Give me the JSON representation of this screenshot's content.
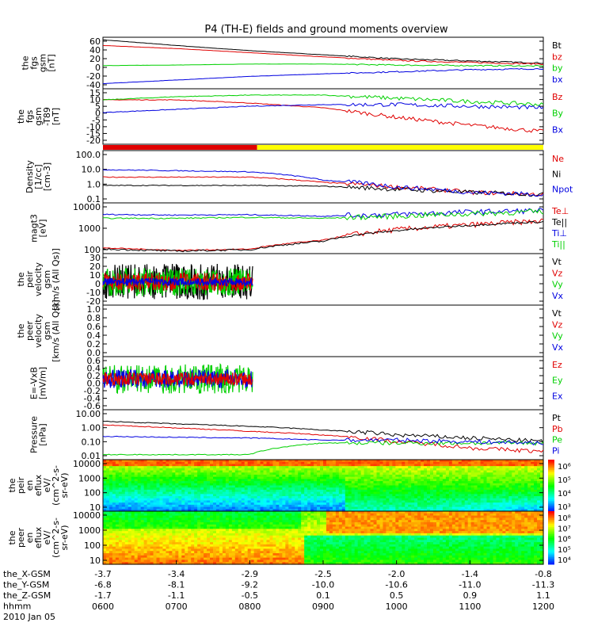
{
  "title": "P4 (TH-E) fields and ground moments overview",
  "x_ticks": [
    "0600",
    "0700",
    "0800",
    "0900",
    "1000",
    "1100",
    "1200"
  ],
  "x_ephem": {
    "labels": [
      "the_X-GSM",
      "the_Y-GSM",
      "the_Z-GSM",
      "hhmm",
      "2010 Jan 05"
    ],
    "X": [
      "-3.7",
      "-3.4",
      "-2.9",
      "-2.5",
      "-2.0",
      "-1.4",
      "-0.8"
    ],
    "Y": [
      "-6.8",
      "-8.1",
      "-9.2",
      "-10.0",
      "-10.6",
      "-11.0",
      "-11.3"
    ],
    "Z": [
      "-1.7",
      "-1.1",
      "-0.5",
      "0.1",
      "0.5",
      "0.9",
      "1.1"
    ]
  },
  "colors": {
    "black": "#000000",
    "red": "#e00000",
    "green": "#00d000",
    "blue": "#0000e0",
    "yellow": "#ffff00"
  },
  "panels": [
    {
      "id": "fgs_gsm",
      "ylabel": [
        "the",
        "fgs",
        "gsm",
        "[nT]"
      ],
      "ticks": [
        "60",
        "40",
        "20",
        "0",
        "-20",
        "-40"
      ],
      "legend": [
        [
          "Bt",
          "black"
        ],
        [
          "bz",
          "red"
        ],
        [
          "by",
          "green"
        ],
        [
          "bx",
          "blue"
        ]
      ]
    },
    {
      "id": "fgs_ssd",
      "ylabel": [
        "the",
        "fgs",
        "gsm",
        "-T89",
        "[nT]"
      ],
      "ticks": [
        "15",
        "10",
        "5",
        "0",
        "-5",
        "-10",
        "-15",
        "-20"
      ],
      "legend": [
        [
          "Bz",
          "red"
        ],
        [
          "By",
          "green"
        ],
        [
          "Bx",
          "blue"
        ]
      ]
    },
    {
      "id": "bar",
      "ylabel": [],
      "ticks": [],
      "legend": []
    },
    {
      "id": "density",
      "ylabel": [
        "Density",
        "[1/cc]",
        "[cm-3]"
      ],
      "ticks": [
        "100.0",
        "10.0",
        "1.0",
        "0.1"
      ],
      "legend": [
        [
          "Ne",
          "red"
        ],
        [
          "Ni",
          "black"
        ],
        [
          "Npot",
          "blue"
        ]
      ]
    },
    {
      "id": "temp",
      "ylabel": [
        "magt3",
        "[eV]"
      ],
      "ticks": [
        "10000",
        "1000",
        "100"
      ],
      "legend": [
        [
          "Te⊥",
          "red"
        ],
        [
          "Te||",
          "black"
        ],
        [
          "Ti⊥",
          "blue"
        ],
        [
          "Ti||",
          "green"
        ]
      ]
    },
    {
      "id": "peir",
      "ylabel": [
        "the",
        "peir",
        "velocity",
        "gsm",
        "[km/s (All Qs)]"
      ],
      "ticks": [
        "30",
        "20",
        "10",
        "0",
        "-10",
        "-20"
      ],
      "legend": [
        [
          "Vt",
          "black"
        ],
        [
          "Vz",
          "red"
        ],
        [
          "Vy",
          "green"
        ],
        [
          "Vx",
          "blue"
        ]
      ]
    },
    {
      "id": "peer",
      "ylabel": [
        "the",
        "peer",
        "velocity",
        "gsm",
        "[km/s (All Qs)]"
      ],
      "ticks": [
        "1.0",
        "0.8",
        "0.6",
        "0.4",
        "0.2",
        "0.0"
      ],
      "legend": [
        [
          "Vt",
          "black"
        ],
        [
          "Vz",
          "red"
        ],
        [
          "Vy",
          "green"
        ],
        [
          "Vx",
          "blue"
        ]
      ]
    },
    {
      "id": "efield",
      "ylabel": [
        "E=-VxB",
        "[mV/m]"
      ],
      "ticks": [
        "0.6",
        "0.4",
        "0.2",
        "0.0",
        "-0.2",
        "-0.4",
        "-0.6"
      ],
      "legend": [
        [
          "Ez",
          "red"
        ],
        [
          "Ey",
          "green"
        ],
        [
          "Ex",
          "blue"
        ]
      ]
    },
    {
      "id": "pressure",
      "ylabel": [
        "Pressure",
        "[nPa]"
      ],
      "ticks": [
        "10.00",
        "1.00",
        "0.10",
        "0.01"
      ],
      "legend": [
        [
          "Pt",
          "black"
        ],
        [
          "Pb",
          "red"
        ],
        [
          "Pe",
          "green"
        ],
        [
          "Pi",
          "blue"
        ]
      ]
    },
    {
      "id": "peir_spec",
      "ylabel": [
        "the",
        "peir",
        "en",
        "eflux",
        "eV/",
        "(cm^2-s-",
        "sr-eV)"
      ],
      "ticks": [
        "10000",
        "1000",
        "100",
        "10"
      ],
      "cbar": [
        "10⁶",
        "10⁵",
        "10⁴",
        "10³"
      ]
    },
    {
      "id": "peer_spec",
      "ylabel": [
        "the",
        "peer",
        "en",
        "eflux",
        "eV/",
        "(cm^2-s-",
        "sr-eV)"
      ],
      "ticks": [
        "10000",
        "1000",
        "100",
        "10"
      ],
      "cbar": [
        "10⁸",
        "10⁷",
        "10⁶",
        "10⁵",
        "10⁴"
      ]
    }
  ],
  "chart_data": {
    "type": "line",
    "title": "P4 (TH-E) fields and ground moments overview",
    "xlabel": "hhmm",
    "x_time": [
      "0600",
      "0700",
      "0800",
      "0900",
      "1000",
      "1100",
      "1200"
    ],
    "date": "2010 Jan 05",
    "series": [
      {
        "name": "Bt",
        "panel": "fgs_gsm",
        "x": [
          "0600",
          "0700",
          "0800",
          "0900",
          "1000",
          "1100",
          "1200"
        ],
        "values": [
          55,
          44,
          34,
          26,
          18,
          14,
          10
        ]
      },
      {
        "name": "bz",
        "panel": "fgs_gsm",
        "x": [
          "0600",
          "0700",
          "0800",
          "0900",
          "1000",
          "1100",
          "1200"
        ],
        "values": [
          44,
          38,
          30,
          22,
          15,
          11,
          8
        ]
      },
      {
        "name": "by",
        "panel": "fgs_gsm",
        "x": [
          "0600",
          "0700",
          "0800",
          "0900",
          "1000",
          "1100",
          "1200"
        ],
        "values": [
          5,
          6,
          8,
          8,
          6,
          5,
          4
        ]
      },
      {
        "name": "bx",
        "panel": "fgs_gsm",
        "x": [
          "0600",
          "0700",
          "0800",
          "0900",
          "1000",
          "1100",
          "1200"
        ],
        "values": [
          -30,
          -23,
          -16,
          -11,
          -7,
          -3,
          -1
        ]
      },
      {
        "name": "Bz",
        "panel": "fgs_ssd",
        "x": [
          "0600",
          "0700",
          "0800",
          "0900",
          "1000",
          "1100",
          "1200"
        ],
        "values": [
          8,
          8,
          6,
          3,
          -3,
          -8,
          -12
        ]
      },
      {
        "name": "By",
        "panel": "fgs_ssd",
        "x": [
          "0600",
          "0700",
          "0800",
          "0900",
          "1000",
          "1100",
          "1200"
        ],
        "values": [
          8,
          10,
          11,
          11,
          9,
          7,
          5
        ]
      },
      {
        "name": "Bx",
        "panel": "fgs_ssd",
        "x": [
          "0600",
          "0700",
          "0800",
          "0900",
          "1000",
          "1100",
          "1200"
        ],
        "values": [
          0,
          2,
          4,
          5,
          5,
          4,
          3
        ]
      },
      {
        "name": "Ne",
        "panel": "density",
        "x": [
          "0600",
          "0700",
          "0800",
          "0900",
          "1000",
          "1100",
          "1200"
        ],
        "values": [
          3,
          3,
          3,
          1.5,
          0.8,
          0.4,
          0.3
        ]
      },
      {
        "name": "Ni",
        "panel": "density",
        "x": [
          "0600",
          "0700",
          "0800",
          "0900",
          "1000",
          "1100",
          "1200"
        ],
        "values": [
          1,
          1,
          1,
          0.9,
          0.6,
          0.4,
          0.3
        ]
      },
      {
        "name": "Npot",
        "panel": "density",
        "x": [
          "0600",
          "0700",
          "0800",
          "0900",
          "1000",
          "1100",
          "1200"
        ],
        "values": [
          8,
          7,
          6,
          2,
          0.8,
          0.4,
          0.3
        ]
      },
      {
        "name": "Te⊥",
        "panel": "temp",
        "x": [
          "0600",
          "0700",
          "0800",
          "0900",
          "1000",
          "1100",
          "1200"
        ],
        "values": [
          90,
          70,
          80,
          200,
          600,
          1000,
          1500
        ]
      },
      {
        "name": "Ti⊥",
        "panel": "temp",
        "x": [
          "0600",
          "0700",
          "0800",
          "0900",
          "1000",
          "1100",
          "1200"
        ],
        "values": [
          3000,
          2800,
          2900,
          2500,
          3000,
          3800,
          4500
        ]
      },
      {
        "name": "Ti||",
        "panel": "temp",
        "x": [
          "0600",
          "0700",
          "0800",
          "0900",
          "1000",
          "1100",
          "1200"
        ],
        "values": [
          2000,
          2000,
          2200,
          2000,
          2500,
          3200,
          4000
        ]
      },
      {
        "name": "Pt",
        "panel": "pressure",
        "x": [
          "0600",
          "0700",
          "0800",
          "0900",
          "1000",
          "1100",
          "1200"
        ],
        "values": [
          2.0,
          1.4,
          1.0,
          0.6,
          0.3,
          0.2,
          0.12
        ]
      },
      {
        "name": "Pb",
        "panel": "pressure",
        "x": [
          "0600",
          "0700",
          "0800",
          "0900",
          "1000",
          "1100",
          "1200"
        ],
        "values": [
          1.2,
          0.8,
          0.5,
          0.3,
          0.12,
          0.05,
          0.03
        ]
      },
      {
        "name": "Pe",
        "panel": "pressure",
        "x": [
          "0600",
          "0700",
          "0800",
          "0900",
          "1000",
          "1100",
          "1200"
        ],
        "values": [
          0.02,
          0.02,
          0.02,
          0.1,
          0.1,
          0.1,
          0.1
        ]
      },
      {
        "name": "Pi",
        "panel": "pressure",
        "x": [
          "0600",
          "0700",
          "0800",
          "0900",
          "1000",
          "1100",
          "1200"
        ],
        "values": [
          0.25,
          0.22,
          0.2,
          0.15,
          0.15,
          0.12,
          0.1
        ]
      }
    ]
  }
}
